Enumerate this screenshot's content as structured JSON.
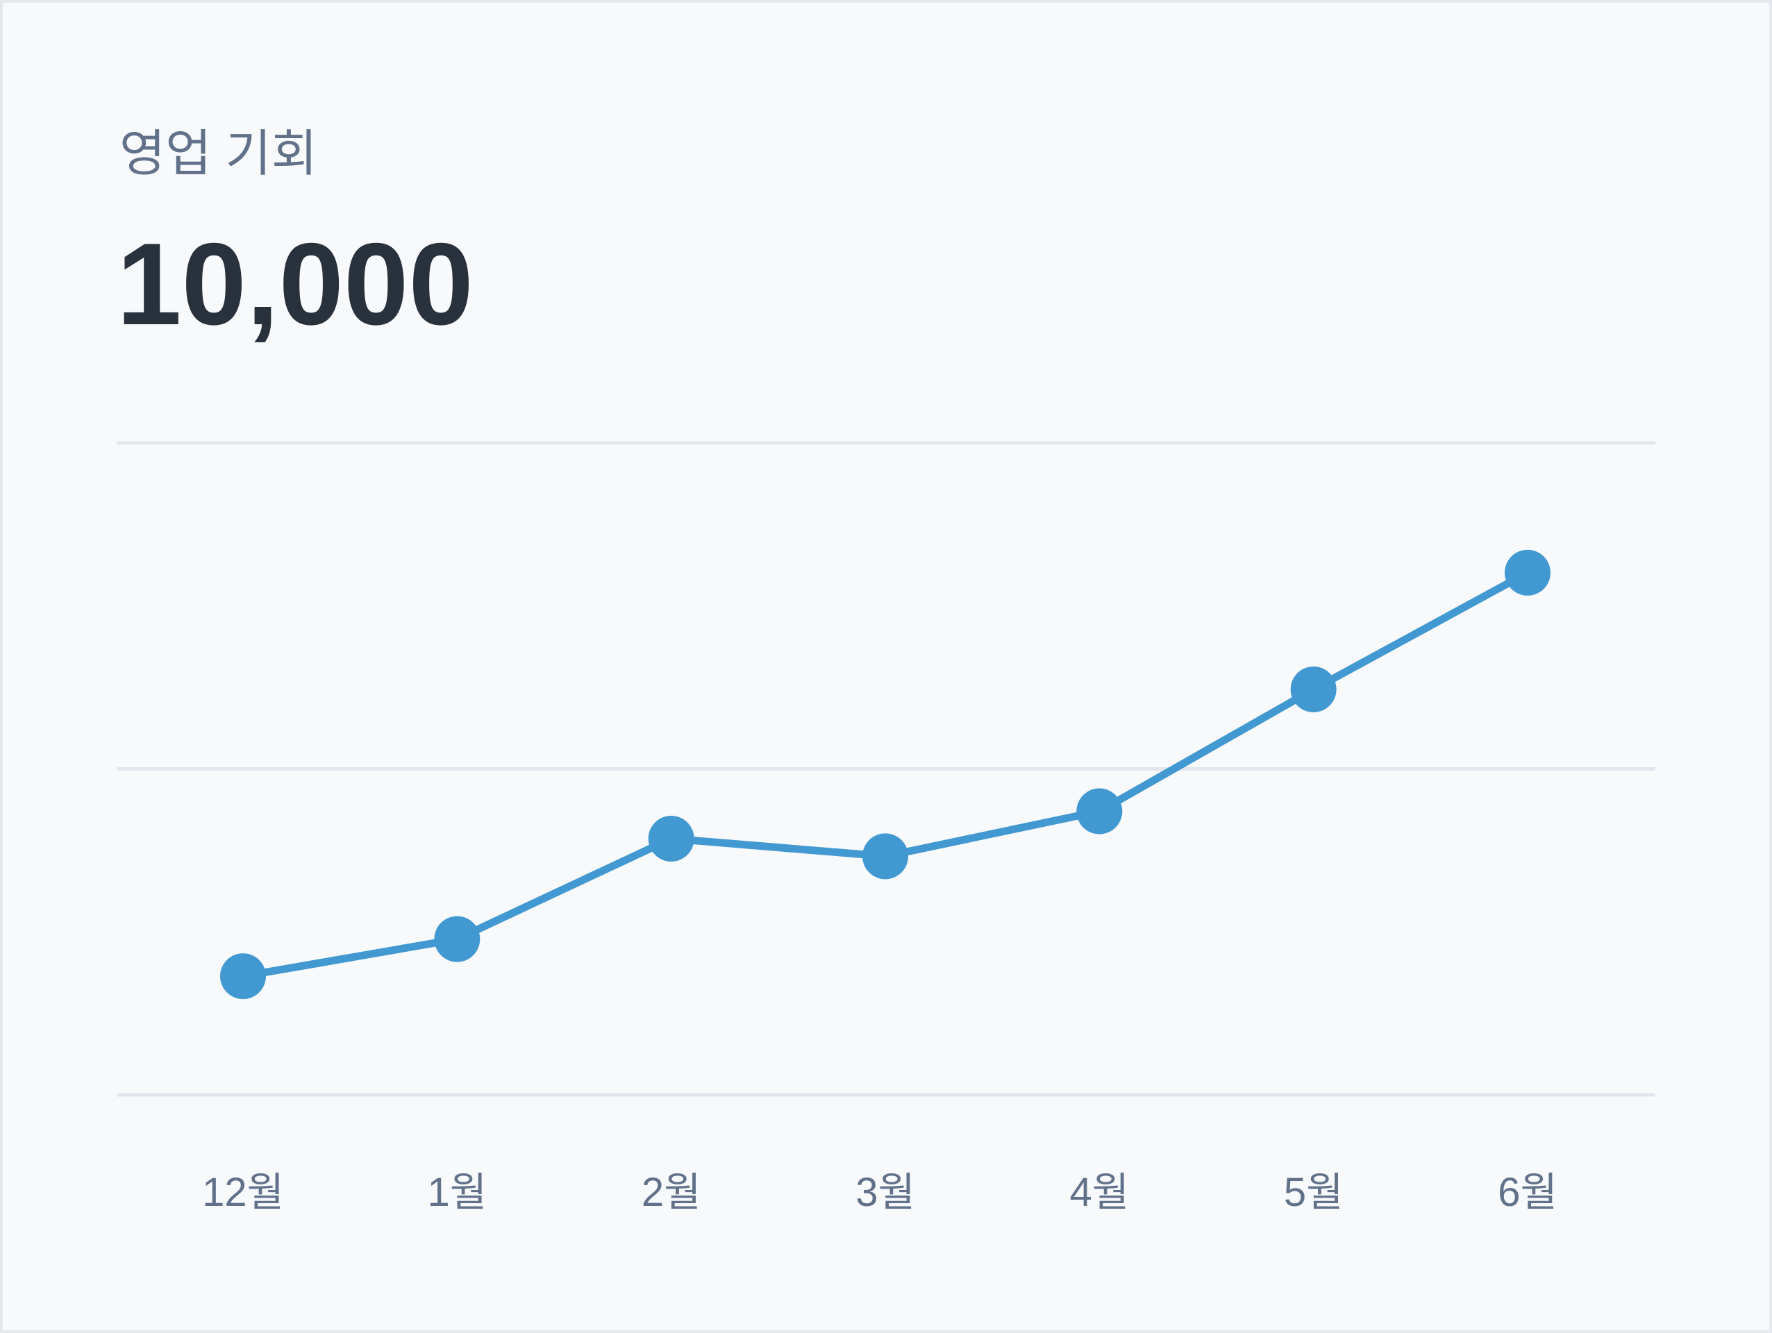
{
  "card": {
    "label": "영업 기회",
    "value": "10,000"
  },
  "chart_data": {
    "type": "line",
    "categories": [
      "12월",
      "1월",
      "2월",
      "3월",
      "4월",
      "5월",
      "6월"
    ],
    "series": [
      {
        "color": "#4299d1",
        "values": [
          18.2,
          23.9,
          39.3,
          36.6,
          43.5,
          62.2,
          80.1
        ]
      }
    ],
    "ylim": [
      0,
      100
    ],
    "yticks": [
      0,
      50,
      100
    ],
    "grid": true
  }
}
